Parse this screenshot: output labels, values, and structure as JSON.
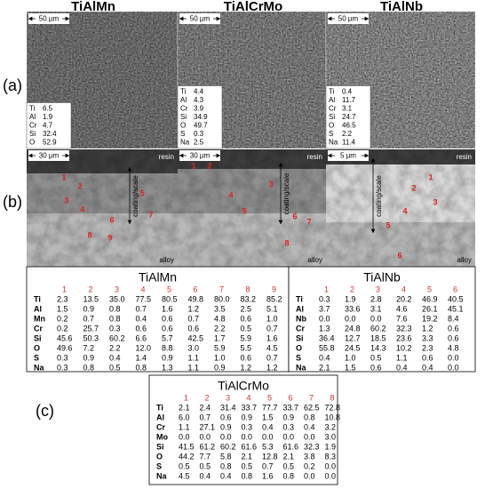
{
  "titles": [
    "TiAlMn",
    "TiAlCrMo",
    "TiAlNb"
  ],
  "row_labels": {
    "a": "(a)",
    "b": "(b)",
    "c": "(c)"
  },
  "panels_a": [
    {
      "scale": "50 µm",
      "composition": [
        [
          "Ti",
          "6.5"
        ],
        [
          "Al",
          "1.9"
        ],
        [
          "Cr",
          "4.7"
        ],
        [
          "Si",
          "32.4"
        ],
        [
          "O",
          "52.9"
        ]
      ]
    },
    {
      "scale": "50 µm",
      "composition": [
        [
          "Ti",
          "4.4"
        ],
        [
          "Al",
          "4.3"
        ],
        [
          "Cr",
          "3.9"
        ],
        [
          "Si",
          "34.9"
        ],
        [
          "O",
          "49.7"
        ],
        [
          "S",
          "0.3"
        ],
        [
          "Na",
          "2.5"
        ]
      ]
    },
    {
      "scale": "50 µm",
      "composition": [
        [
          "Ti",
          "0.4"
        ],
        [
          "Al",
          "11.7"
        ],
        [
          "Cr",
          "3.1"
        ],
        [
          "Si",
          "24.7"
        ],
        [
          "O",
          "46.5"
        ],
        [
          "S",
          "2.2"
        ],
        [
          "Na",
          "11.4"
        ]
      ]
    }
  ],
  "panels_b": [
    {
      "scale": "30 µm",
      "resin": "resin",
      "alloy": "alloy",
      "coating": "coating/scale",
      "points": [
        "1",
        "2",
        "3",
        "4",
        "5",
        "6",
        "7",
        "8",
        "9"
      ]
    },
    {
      "scale": "30 µm",
      "resin": "resin",
      "alloy": "alloy",
      "coating": "coating/scale",
      "points": [
        "1",
        "2",
        "3",
        "4",
        "5",
        "6",
        "7",
        "8"
      ]
    },
    {
      "scale": "5 µm",
      "resin": "resin",
      "alloy": "alloy",
      "coating": "coating/scale",
      "points": [
        "1",
        "2",
        "3",
        "4",
        "5",
        "6"
      ]
    }
  ],
  "tables": [
    {
      "title": "TiAlMn",
      "header": [
        "1",
        "2",
        "3",
        "4",
        "5",
        "6",
        "7",
        "8",
        "9"
      ],
      "rows": [
        [
          "Ti",
          "2.3",
          "13.5",
          "35.0",
          "77.5",
          "80.5",
          "49.8",
          "80.0",
          "83.2",
          "85.2"
        ],
        [
          "Al",
          "1.5",
          "0.9",
          "0.8",
          "0.7",
          "1.6",
          "1.2",
          "3.5",
          "2.5",
          "5.1"
        ],
        [
          "Mn",
          "0.2",
          "0.7",
          "0.8",
          "0.4",
          "0.6",
          "0.7",
          "4.8",
          "0.6",
          "1.0"
        ],
        [
          "Cr",
          "0.2",
          "25.7",
          "0.3",
          "0.6",
          "0.6",
          "0.6",
          "2.2",
          "0.5",
          "0.7"
        ],
        [
          "Si",
          "45.6",
          "50.3",
          "60.2",
          "6.6",
          "5.7",
          "42.5",
          "1.7",
          "5.9",
          "1.6"
        ],
        [
          "O",
          "49.6",
          "7.2",
          "2.2",
          "12.0",
          "8.8",
          "3.0",
          "5.9",
          "5.5",
          "4.5"
        ],
        [
          "S",
          "0.3",
          "0.9",
          "0.4",
          "1.4",
          "0.9",
          "1.1",
          "1.0",
          "0.6",
          "0.7"
        ],
        [
          "Na",
          "0.3",
          "0.8",
          "0.5",
          "0.8",
          "1.3",
          "1.1",
          "0.9",
          "1.2",
          "1.2"
        ]
      ]
    },
    {
      "title": "TiAlNb",
      "header": [
        "1",
        "2",
        "3",
        "4",
        "5",
        "6"
      ],
      "rows": [
        [
          "Ti",
          "0.3",
          "1.9",
          "2.8",
          "20.2",
          "46.9",
          "40.5"
        ],
        [
          "Al",
          "3.7",
          "33.6",
          "3.1",
          "4.6",
          "26.1",
          "45.1"
        ],
        [
          "Nb",
          "0.0",
          "0.0",
          "0.0",
          "7.6",
          "19.2",
          "8.4"
        ],
        [
          "Cr",
          "1.3",
          "24.8",
          "60.2",
          "32.3",
          "1.2",
          "0.6"
        ],
        [
          "Si",
          "36.4",
          "12.7",
          "18.5",
          "23.6",
          "3.3",
          "0.6"
        ],
        [
          "O",
          "55.8",
          "24.5",
          "14.3",
          "10.2",
          "2.3",
          "4.8"
        ],
        [
          "S",
          "0.4",
          "1.0",
          "0.5",
          "1.1",
          "0.6",
          "0.0"
        ],
        [
          "Na",
          "2.1",
          "1.5",
          "0.6",
          "0.4",
          "0.4",
          "0.0"
        ]
      ]
    },
    {
      "title": "TiAlCrMo",
      "header": [
        "1",
        "2",
        "3",
        "4",
        "5",
        "6",
        "7",
        "8"
      ],
      "rows": [
        [
          "Ti",
          "2.1",
          "2.4",
          "31.4",
          "33.7",
          "77.7",
          "33.7",
          "62.5",
          "72.8"
        ],
        [
          "Al",
          "6.0",
          "0.7",
          "0.6",
          "0.9",
          "1.5",
          "0.9",
          "0.8",
          "10.8"
        ],
        [
          "Cr",
          "1.1",
          "27.1",
          "0.9",
          "0.3",
          "0.4",
          "0.3",
          "0.4",
          "3.2"
        ],
        [
          "Mo",
          "0.0",
          "0.0",
          "0.0",
          "0.0",
          "0.0",
          "0.0",
          "0.0",
          "3.0"
        ],
        [
          "Si",
          "41.5",
          "61.2",
          "60.2",
          "61.6",
          "5.3",
          "61.6",
          "32.3",
          "1.9"
        ],
        [
          "O",
          "44.2",
          "7.7",
          "5.8",
          "2.1",
          "12.8",
          "2.1",
          "3.8",
          "8.3"
        ],
        [
          "S",
          "0.5",
          "0.5",
          "0.8",
          "0.5",
          "0.7",
          "0.5",
          "0.2",
          "0.0"
        ],
        [
          "Na",
          "4.5",
          "0.4",
          "0.4",
          "0.8",
          "1.6",
          "0.8",
          "0.0",
          "0.0"
        ]
      ]
    }
  ]
}
